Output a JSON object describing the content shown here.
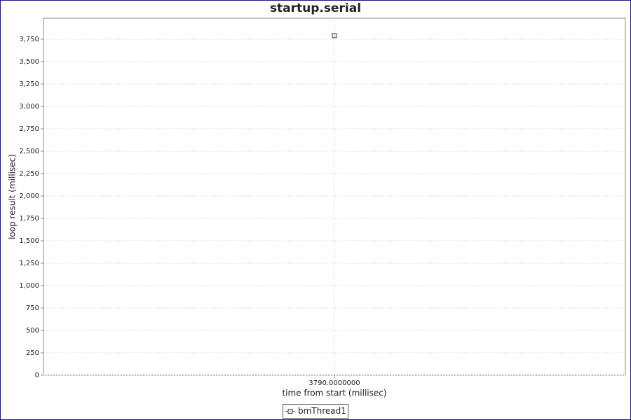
{
  "chart_data": {
    "type": "line",
    "title": "startup.serial",
    "x_label": "time from start (millisec)",
    "y_label": "loop result (millisec)",
    "x": [
      3790
    ],
    "series": [
      {
        "name": "bmThread1",
        "color": "#444444",
        "values": [
          3790
        ]
      }
    ],
    "xlim": [
      3789,
      3791
    ],
    "xticks": [
      {
        "value": 3790,
        "label": "3790.0000000"
      }
    ],
    "ylim": [
      0,
      3984
    ],
    "yticks": [
      0,
      250,
      500,
      750,
      {
        "value": 1000,
        "label": "1,000"
      },
      {
        "value": 1250,
        "label": "1,250"
      },
      {
        "value": 1500,
        "label": "1,500"
      },
      {
        "value": 1750,
        "label": "1,750"
      },
      {
        "value": 2000,
        "label": "2,000"
      },
      {
        "value": 2250,
        "label": "2,250"
      },
      {
        "value": 2500,
        "label": "2,500"
      },
      {
        "value": 2750,
        "label": "2,750"
      },
      {
        "value": 3000,
        "label": "3,000"
      },
      {
        "value": 3250,
        "label": "3,250"
      },
      {
        "value": 3500,
        "label": "3,500"
      },
      {
        "value": 3750,
        "label": "3,750"
      }
    ],
    "grid": true,
    "legend": "bottom"
  }
}
